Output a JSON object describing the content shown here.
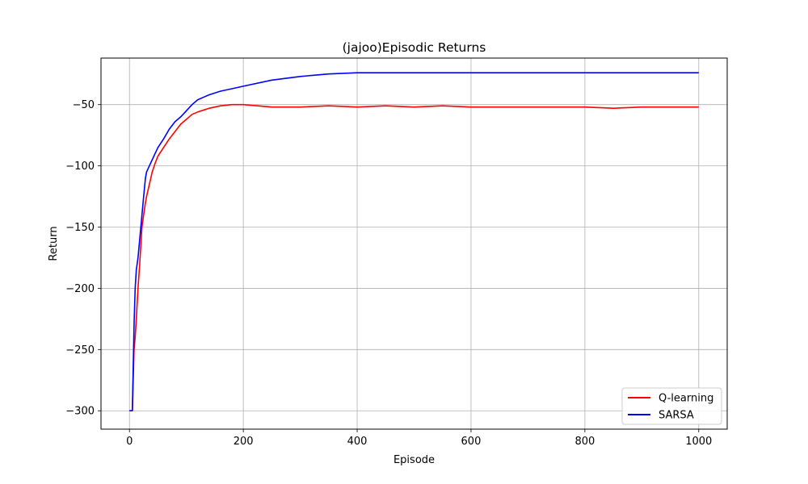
{
  "chart_data": {
    "type": "line",
    "title": "(jajoo)Episodic Returns",
    "xlabel": "Episode",
    "ylabel": "Return",
    "xlim": [
      -50,
      1050
    ],
    "ylim": [
      -315,
      -12
    ],
    "xticks": [
      0,
      200,
      400,
      600,
      800,
      1000
    ],
    "yticks": [
      -300,
      -250,
      -200,
      -150,
      -100,
      -50
    ],
    "grid": true,
    "legend_position": "lower-right",
    "series": [
      {
        "name": "Q-learning",
        "color": "#ff0000",
        "x": [
          0,
          5,
          8,
          10,
          12,
          15,
          18,
          20,
          22,
          25,
          28,
          30,
          35,
          40,
          45,
          50,
          60,
          70,
          80,
          90,
          100,
          110,
          120,
          140,
          160,
          180,
          200,
          250,
          300,
          350,
          400,
          450,
          500,
          550,
          600,
          650,
          700,
          750,
          800,
          850,
          900,
          950,
          1000
        ],
        "y": [
          -300,
          -300,
          -250,
          -240,
          -225,
          -200,
          -180,
          -165,
          -150,
          -140,
          -130,
          -125,
          -115,
          -105,
          -98,
          -92,
          -85,
          -78,
          -72,
          -66,
          -62,
          -58,
          -56,
          -53,
          -51,
          -50,
          -50,
          -52,
          -52,
          -51,
          -52,
          -51,
          -52,
          -51,
          -52,
          -52,
          -52,
          -52,
          -52,
          -53,
          -52,
          -52,
          -52
        ]
      },
      {
        "name": "SARSA",
        "color": "#0000ff",
        "x": [
          0,
          5,
          8,
          10,
          12,
          15,
          18,
          20,
          22,
          25,
          28,
          30,
          35,
          40,
          45,
          50,
          60,
          70,
          80,
          90,
          100,
          110,
          120,
          140,
          160,
          180,
          200,
          250,
          300,
          350,
          400,
          450,
          500,
          550,
          600,
          650,
          700,
          750,
          800,
          850,
          900,
          950,
          1000
        ],
        "y": [
          -300,
          -300,
          -230,
          -200,
          -185,
          -175,
          -160,
          -150,
          -140,
          -125,
          -110,
          -105,
          -100,
          -95,
          -90,
          -85,
          -78,
          -70,
          -64,
          -60,
          -55,
          -50,
          -46,
          -42,
          -39,
          -37,
          -35,
          -30,
          -27,
          -25,
          -24,
          -24,
          -24,
          -24,
          -24,
          -24,
          -24,
          -24,
          -24,
          -24,
          -24,
          -24,
          -24
        ]
      }
    ]
  }
}
